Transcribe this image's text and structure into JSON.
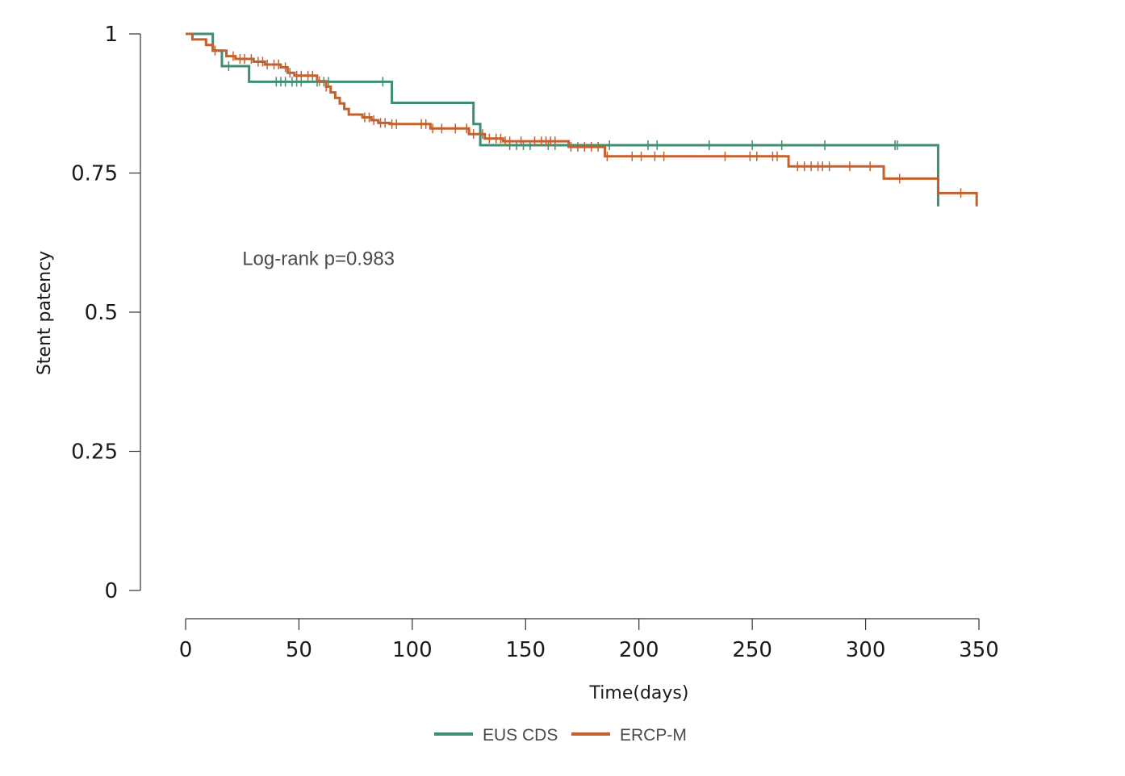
{
  "chart_data": {
    "type": "line",
    "subtype": "kaplan-meier",
    "title": "",
    "xlabel": "Time(days)",
    "ylabel": "Stent patency",
    "xlim": [
      0,
      350
    ],
    "ylim": [
      0,
      1
    ],
    "x_ticks": [
      0,
      50,
      100,
      150,
      200,
      250,
      300,
      350
    ],
    "x_tick_labels": [
      "0",
      "50",
      "100",
      "150",
      "200",
      "250",
      "300",
      "350"
    ],
    "y_ticks": [
      0,
      0.25,
      0.5,
      0.75,
      1
    ],
    "y_tick_labels": [
      "0",
      "0.25",
      "0.5",
      "0.75",
      "1"
    ],
    "grid": false,
    "legend_position": "bottom",
    "annotations": [
      {
        "text": "Log-rank p=0.983",
        "x": 25,
        "y": 0.585
      }
    ],
    "series": [
      {
        "name": "EUS CDS",
        "color": "#3e8e72",
        "steps": [
          [
            0,
            1.0
          ],
          [
            12,
            0.97
          ],
          [
            16,
            0.942
          ],
          [
            28,
            0.914
          ],
          [
            91,
            0.876
          ],
          [
            127,
            0.838
          ],
          [
            130,
            0.8
          ],
          [
            332,
            0.69
          ]
        ],
        "end_x": 332,
        "censor_x": [
          19,
          40,
          42,
          44,
          47,
          49,
          51,
          58,
          61,
          63,
          87,
          143,
          146,
          149,
          152,
          160,
          163,
          187,
          204,
          208,
          231,
          250,
          263,
          282,
          313,
          314
        ]
      },
      {
        "name": "ERCP-M",
        "color": "#c4602d",
        "steps": [
          [
            0,
            1.0
          ],
          [
            3,
            0.99
          ],
          [
            9,
            0.98
          ],
          [
            12,
            0.97
          ],
          [
            18,
            0.96
          ],
          [
            22,
            0.955
          ],
          [
            30,
            0.95
          ],
          [
            35,
            0.945
          ],
          [
            42,
            0.94
          ],
          [
            45,
            0.93
          ],
          [
            48,
            0.925
          ],
          [
            58,
            0.915
          ],
          [
            62,
            0.905
          ],
          [
            64,
            0.895
          ],
          [
            66,
            0.885
          ],
          [
            68,
            0.875
          ],
          [
            70,
            0.865
          ],
          [
            72,
            0.855
          ],
          [
            78,
            0.85
          ],
          [
            82,
            0.845
          ],
          [
            85,
            0.84
          ],
          [
            90,
            0.838
          ],
          [
            108,
            0.83
          ],
          [
            125,
            0.82
          ],
          [
            132,
            0.812
          ],
          [
            140,
            0.807
          ],
          [
            169,
            0.797
          ],
          [
            185,
            0.78
          ],
          [
            266,
            0.762
          ],
          [
            308,
            0.74
          ],
          [
            332,
            0.714
          ],
          [
            349,
            0.69
          ]
        ],
        "end_x": 349,
        "censor_x": [
          13,
          21,
          24,
          26,
          29,
          32,
          34,
          36,
          39,
          41,
          44,
          46,
          49,
          51,
          54,
          56,
          59,
          62,
          79,
          81,
          83,
          86,
          88,
          91,
          93,
          104,
          106,
          109,
          113,
          119,
          124,
          127,
          131,
          134,
          137,
          139,
          141,
          143,
          148,
          154,
          157,
          159,
          161,
          163,
          170,
          173,
          176,
          179,
          182,
          186,
          197,
          201,
          207,
          211,
          238,
          249,
          252,
          259,
          261,
          270,
          273,
          276,
          279,
          281,
          284,
          293,
          302,
          315,
          342
        ]
      }
    ]
  }
}
